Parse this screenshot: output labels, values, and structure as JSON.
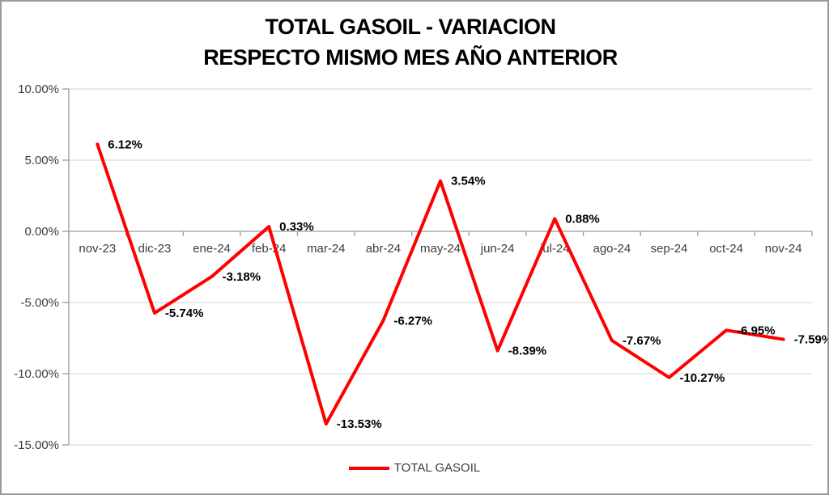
{
  "title": {
    "line1": "TOTAL GASOIL - VARIACION",
    "line2": "RESPECTO MISMO MES AÑO ANTERIOR"
  },
  "chart_data": {
    "type": "line",
    "title": "TOTAL GASOIL - VARIACION RESPECTO MISMO MES AÑO ANTERIOR",
    "xlabel": "",
    "ylabel": "",
    "categories": [
      "nov-23",
      "dic-23",
      "ene-24",
      "feb-24",
      "mar-24",
      "abr-24",
      "may-24",
      "jun-24",
      "jul-24",
      "ago-24",
      "sep-24",
      "oct-24",
      "nov-24"
    ],
    "series": [
      {
        "name": "TOTAL GASOIL",
        "values": [
          6.12,
          -5.74,
          -3.18,
          0.33,
          -13.53,
          -6.27,
          3.54,
          -8.39,
          0.88,
          -7.67,
          -10.27,
          -6.95,
          -7.59
        ],
        "color": "#fe0000"
      }
    ],
    "data_labels": [
      "6.12%",
      "-5.74%",
      "-3.18%",
      "0.33%",
      "-13.53%",
      "-6.27%",
      "3.54%",
      "-8.39%",
      "0.88%",
      "-7.67%",
      "-10.27%",
      "-6.95%",
      "-7.59%"
    ],
    "y_ticks": [
      10,
      5,
      0,
      -5,
      -10,
      -15
    ],
    "y_tick_labels": [
      "10.00%",
      "5.00%",
      "0.00%",
      "-5.00%",
      "-10.00%",
      "-15.00%"
    ],
    "ylim": [
      -15,
      10
    ],
    "grid": true,
    "legend": {
      "label": "TOTAL GASOIL",
      "position": "bottom"
    },
    "colors": {
      "line": "#fe0000",
      "gridline": "#d9d9d9",
      "axis": "#9b9b9b",
      "axis_text": "#3d3d3d",
      "data_label_text": "#000000",
      "border": "#9a9a9a"
    }
  }
}
